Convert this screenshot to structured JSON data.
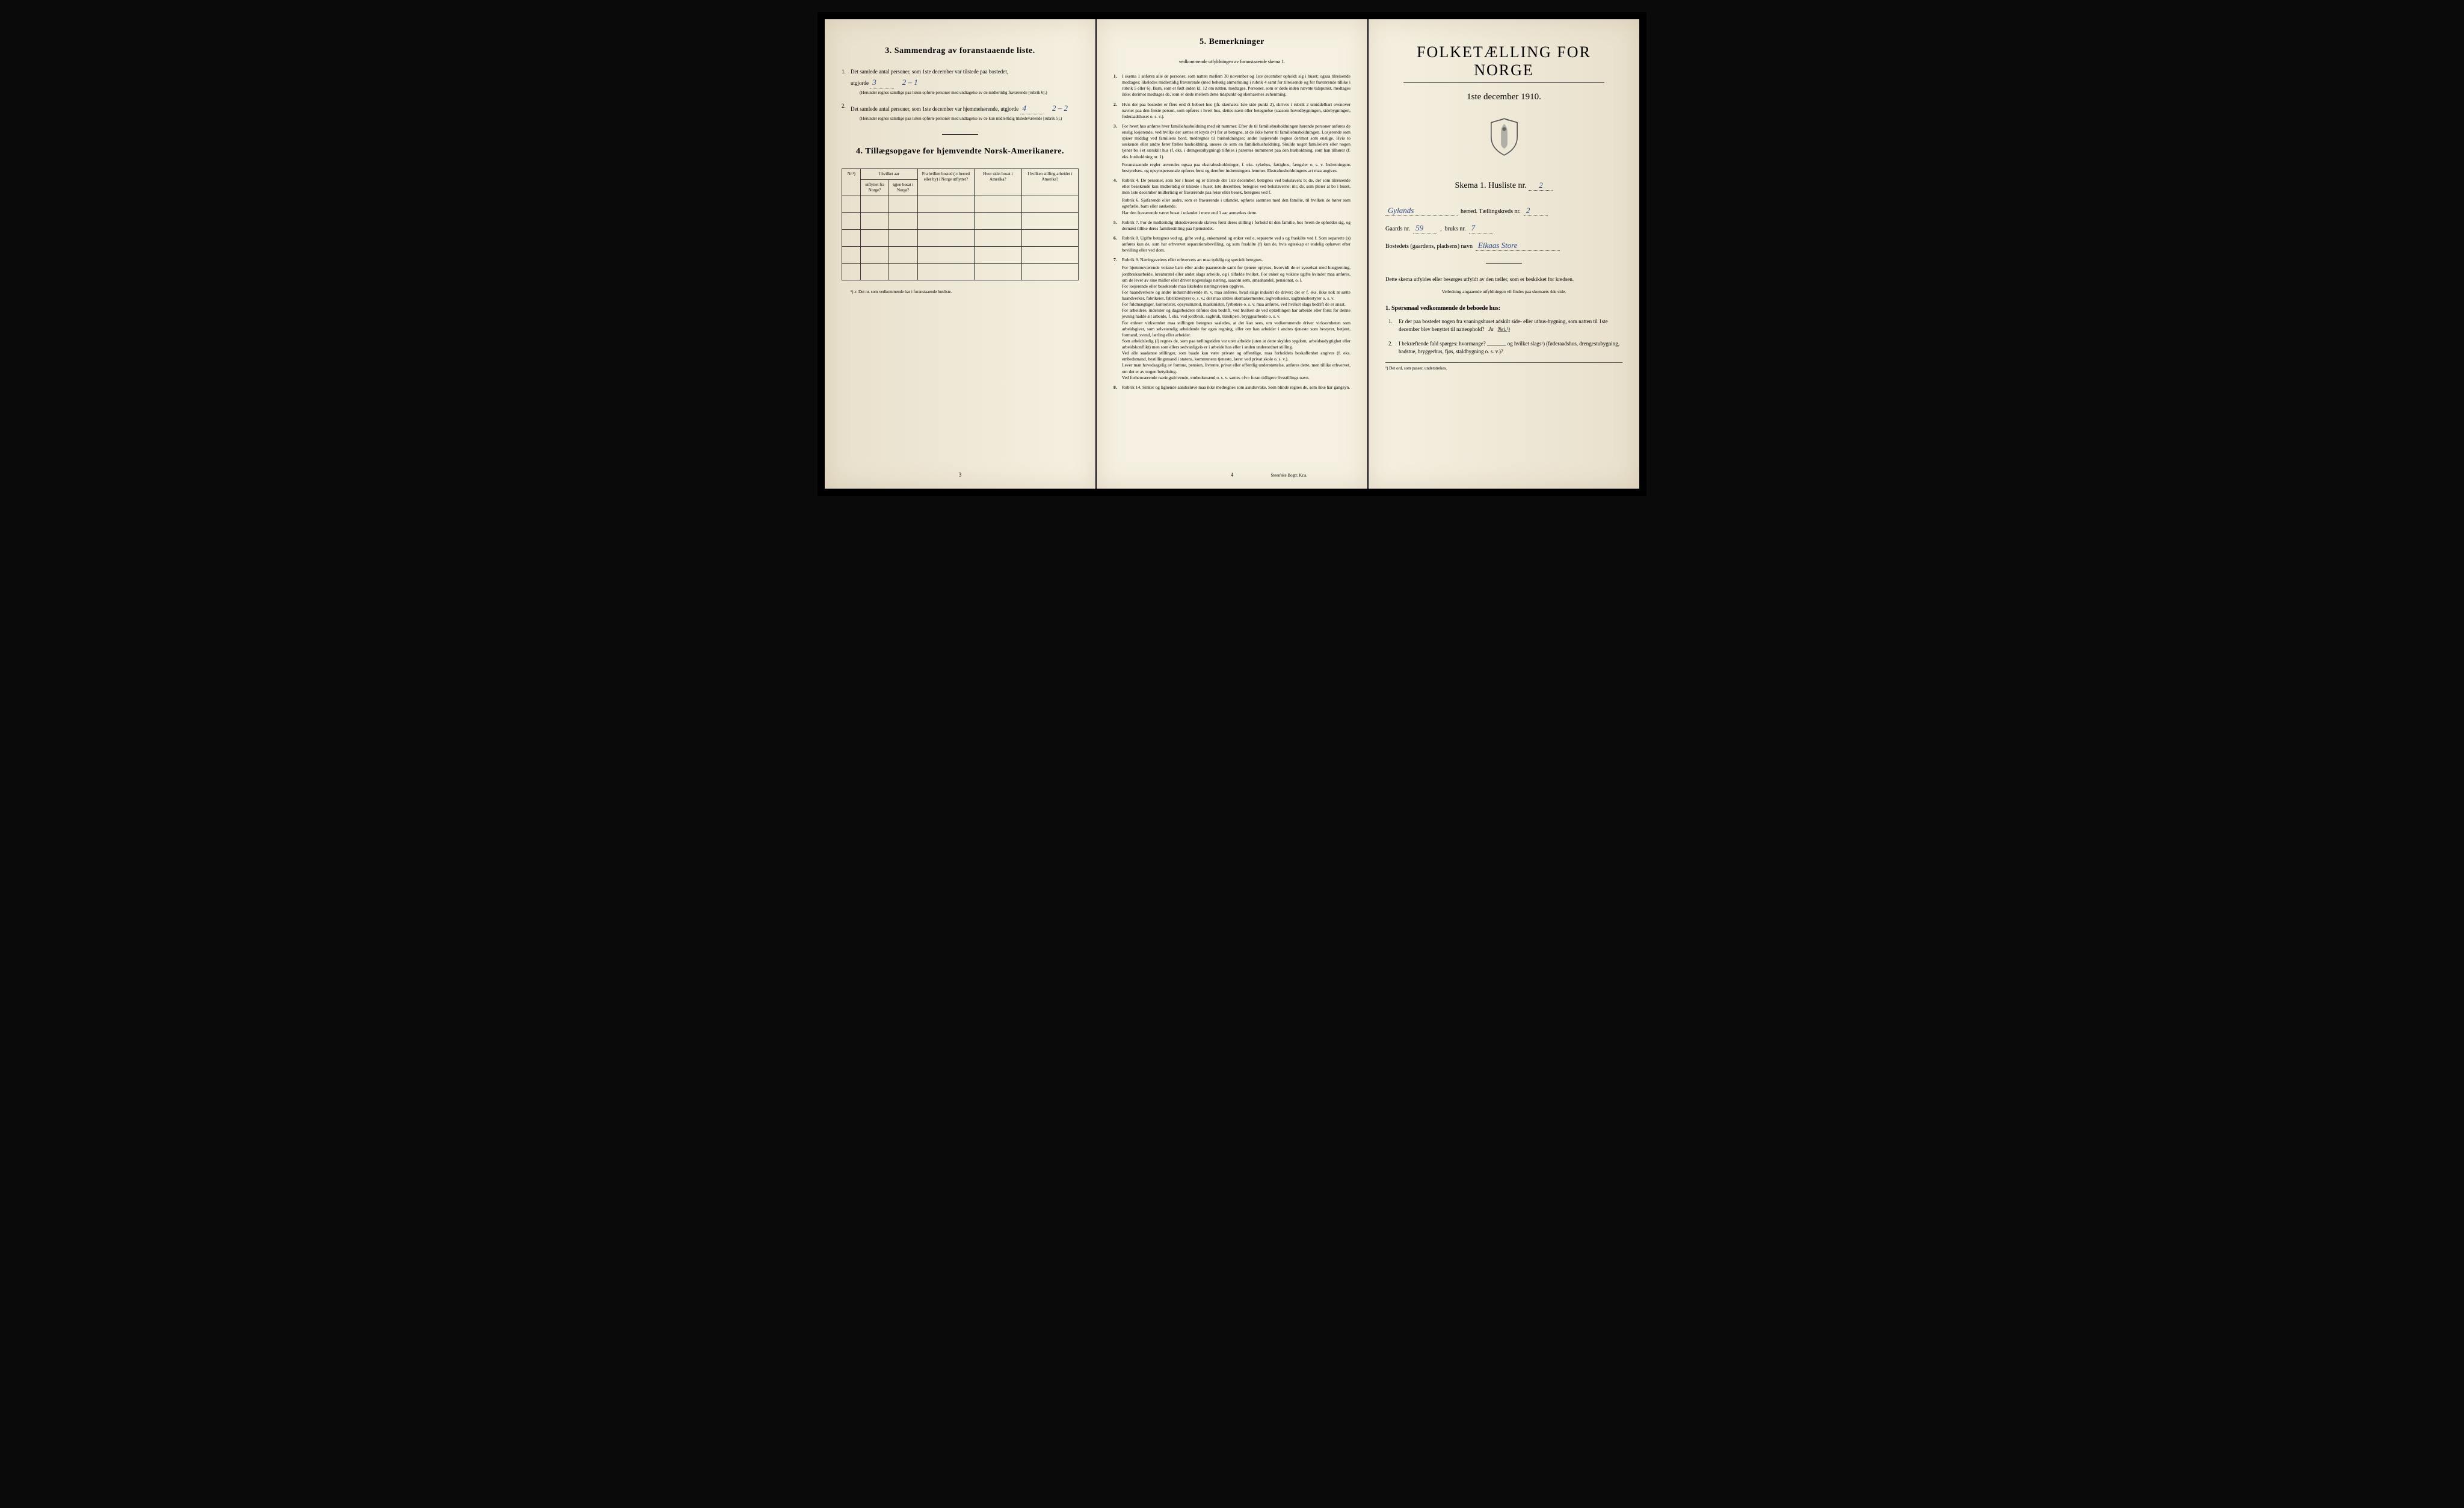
{
  "page1": {
    "section3_title": "3.   Sammendrag av foranstaaende liste.",
    "item1_text": "Det samlede antal personer, som 1ste december var tilstede paa bostedet,",
    "item1_label": "utgjorde",
    "item1_value": "3",
    "item1_handwritten": "2 – 1",
    "item1_note": "(Herunder regnes samtlige paa listen opførte personer med undtagelse av de midlertidig fraværende [rubrik 6].)",
    "item2_text": "Det samlede antal personer, som 1ste december var hjemmehørende, utgjorde",
    "item2_value": "4",
    "item2_handwritten": "2 – 2",
    "item2_note": "(Herunder regnes samtlige paa listen opførte personer med undtagelse av de kun midlertidig tilstedeværende [rubrik 5].)",
    "section4_title": "4.  Tillægsopgave for hjemvendte Norsk-Amerikanere.",
    "table_headers": {
      "col1": "Nr.¹)",
      "col2": "I hvilket aar utflyttet fra Norge?",
      "col3": "igjen bosat i Norge?",
      "col4": "Fra hvilket bosted (ɔ: herred eller by) i Norge utflyttet?",
      "col5": "Hvor sidst bosat i Amerika?",
      "col6": "I hvilken stilling arbeidet i Amerika?"
    },
    "table_footnote": "¹) ɔ: Det nr. som vedkommende har i foranstaaende husliste.",
    "page_number": "3"
  },
  "page2": {
    "section_title": "5.   Bemerkninger",
    "subtitle": "vedkommende utfyldningen av foranstaaende skema 1.",
    "items": [
      {
        "num": "1.",
        "text": "I skema 1 anføres alle de personer, som natten mellem 30 november og 1ste december opholdt sig i huset; ogsaa tilreisende medtages; likeledes midlertidig fraværende (med behørig anmerkning i rubrik 4 samt for tilreisende og for fraværende tillike i rubrik 5 eller 6). Barn, som er født inden kl. 12 om natten, medtages. Personer, som er døde inden nævnte tidspunkt, medtages ikke; derimot medtages de, som er døde mellem dette tidspunkt og skemaernes avhentning."
      },
      {
        "num": "2.",
        "text": "Hvis der paa bostedet er flere end ét beboet hus (jfr. skemaets 1ste side punkt 2), skrives i rubrik 2 umiddelbart ovenover navnet paa den første person, som opføres i hvert hus, dettes navn eller betegnelse (saasom hovedbygningen, sidebygningen, føderaadshuset o. s. v.)."
      },
      {
        "num": "3.",
        "text": "For hvert hus anføres hver familiehusholdning med sit nummer. Efter de til familiehusholdningen hørende personer anføres de enslig losjerende, ved hvilke der sættes et kryds (×) for at betegne, at de ikke hører til familiehusholdningen. Losjerende som spiser middag ved familiens bord, medregnes til husholdningen; andre losjerende regnes derimot som enslige. Hvis to søskende eller andre fører fælles husholdning, ansees de som en familiehusholdning. Skulde noget familielem eller nogen tjener bo i et særskilt hus (f. eks. i drengestubygning) tilføies i parentes nummeret paa den husholdning, som han tilhører (f. eks. husholdning nr. 1).",
        "sub": "Foranstaaende regler anvendes ogsaa paa ekstrahusholdninger, f. eks. sykehus, fattighus, fængsler o. s. v. Indretningens bestyrelses- og opsynspersonale opføres først og derefter indretningens lemmer. Ekstrahusholdningens art maa angives."
      },
      {
        "num": "4.",
        "text": "Rubrik 4. De personer, som bor i huset og er tilstede der 1ste december, betegnes ved bokstaven: b; de, der som tilreisende eller besøkende kun midlertidig er tilstede i huset 1ste december, betegnes ved bokstaverne: mt; de, som pleier at bo i huset, men 1ste december midlertidig er fraværende paa reise eller besøk, betegnes ved f.",
        "sub": "Rubrik 6. Sjøfarende eller andre, som er fraværende i utlandet, opføres sammen med den familie, til hvilken de hører som egtefælle, barn eller søskende.\nHar den fraværende været bosat i utlandet i mere end 1 aar anmerkes dette."
      },
      {
        "num": "5.",
        "text": "Rubrik 7. For de midlertidig tilstedeværende skrives først deres stilling i forhold til den familie, hos hvem de opholder sig, og dernæst tillike deres familiestilling paa hjemstedet."
      },
      {
        "num": "6.",
        "text": "Rubrik 8. Ugifte betegnes ved ug, gifte ved g, enkemænd og enker ved e, separerte ved s og fraskilte ved f. Som separerte (s) anføres kun de, som har erhvervet separationsbevilling, og som fraskilte (f) kun de, hvis egteskap er endelig ophævet efter bevilling eller ved dom."
      },
      {
        "num": "7.",
        "text": "Rubrik 9. Næringsveiens eller erhvervets art maa tydelig og specielt betegnes.",
        "sub": "For hjemmeværende voksne barn eller andre paarørende samt for tjenere oplyses, hvorvidt de er sysselsat med husgjerning, jordbruksarbeide, kreaturstel eller andet slags arbeide, og i tilfælde hvilket. For enker og voksne ugifte kvinder maa anføres, om de lever av sine midler eller driver nogenslags næring, saasom søm, smaahandel, pensionat, o. l.\nFor losjerende eller besøkende maa likeledes næringsveien opgives.\nFor haandverkere og andre industridrivende m. v. maa anføres, hvad slags industri de driver; det er f. eks. ikke nok at sætte haandverker, fabrikeier, fabrikbestyrer o. s. v.; der maa sættes skomakermester, teglverkseier, sagbruksbestyrer o. s. v.\nFor fuldmægtiger, kontorister, opsynsmænd, maskinister, fyrbøtere o. s. v. maa anføres, ved hvilket slags bedrift de er ansat.\nFor arbeidere, inderster og dagarbeidere tilføies den bedrift, ved hvilken de ved optællingen har arbeide eller forut for denne jevnlig hadde sit arbeide, f. eks. ved jordbruk, sagbruk, træsliperi, bryggearbeide o. s. v.\nFor enhver virksomhet maa stillingen betegnes saaledes, at det kan sees, om vedkommende driver virksomheten som arbeidsgiver, som selvstændig arbeidende for egen regning, eller om han arbeider i andres tjeneste som bestyrer, betjent, formand, svend, lærling eller arbeider.\nSom arbeidsledig (l) regnes de, som paa tællingstiden var uten arbeide (uten at dette skyldes sygdom, arbeidsudygtighet eller arbeidskonflikt) men som ellers sedvanligvis er i arbeide hos eller i anden underordnet stilling.\nVed alle saadanne stillinger, som baade kan være private og offentlige, maa forholdets beskaffenhet angives (f. eks. embedsmand, bestillingsmand i statens, kommunens tjeneste, lærer ved privat skole o. s. v.).\nLever man hovedsagelig av formue, pension, livrente, privat eller offentlig understøttelse, anføres dette, men tillike erhvervet, om det er av nogen betydning.\nVed forhenværende næringsdrivende, embedsmænd o. s. v. sættes «fv» foran tidligere livsstillings navn."
      },
      {
        "num": "8.",
        "text": "Rubrik 14. Sinker og lignende aandssløve maa ikke medregnes som aandssvake.\nSom blinde regnes de, som ikke har gangsyn."
      }
    ],
    "page_number": "4",
    "printer": "Steen'ske Bogtr.  Kr.a."
  },
  "page3": {
    "main_title": "FOLKETÆLLING FOR NORGE",
    "date": "1ste december 1910.",
    "skema_label": "Skema 1.   Husliste nr.",
    "skema_num": "2",
    "herred_value": "Gylands",
    "herred_label": "herred.  Tællingskreds nr.",
    "kreds_num": "2",
    "gaards_label": "Gaards nr.",
    "gaards_num": "59",
    "bruks_label": "bruks nr.",
    "bruks_num": "7",
    "bosted_label": "Bostedets (gaardens, pladsens) navn",
    "bosted_value": "Eikaas Store",
    "instruction": "Dette skema utfyldes eller besørges utfyldt av den tæller, som er beskikket for kredsen.",
    "instruction_small": "Veiledning angaaende utfyldningen vil findes paa skemaets 4de side.",
    "q_heading": "1. Spørsmaal vedkommende de beboede hus:",
    "q1_text": "Er der paa bostedet nogen fra vaaningshuset adskilt side- eller uthus-bygning, som natten til 1ste december blev benyttet til natteophold?",
    "q1_answer_ja": "Ja",
    "q1_answer_nei": "Nei.¹)",
    "q2_text": "I bekræftende fald spørges: hvormange? _______ og hvilket slags¹) (føderaadshus, drengestubygning, badstue, bryggerhus, fjøs, staldbygning o. s. v.)?",
    "footnote": "¹) Det ord, som passer, understrekes."
  }
}
